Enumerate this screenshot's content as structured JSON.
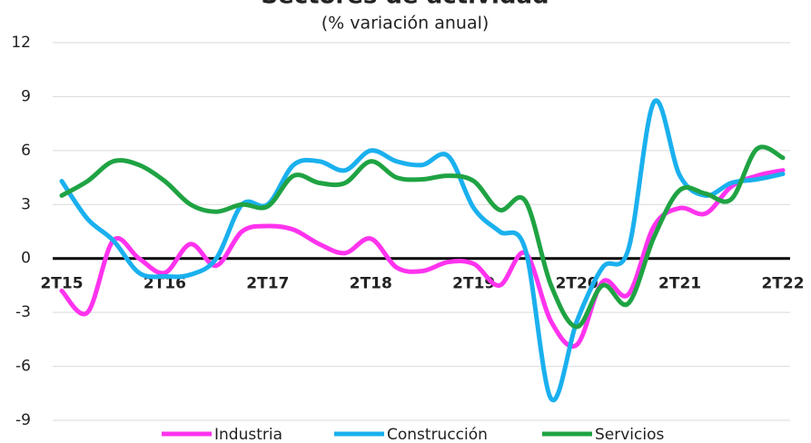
{
  "chart_data": {
    "type": "line",
    "title": "Sectores de actividad",
    "subtitle": "(% variación anual)",
    "categories": [
      "2T15",
      null,
      null,
      null,
      "2T16",
      null,
      null,
      null,
      "2T17",
      null,
      null,
      null,
      "2T18",
      null,
      null,
      null,
      "2T19",
      null,
      null,
      null,
      "2T20",
      null,
      null,
      null,
      "2T21",
      null,
      null,
      null,
      "2T22"
    ],
    "series": [
      {
        "name": "Industria",
        "color": "#ff33ee",
        "values": [
          -1.8,
          -3.0,
          1.0,
          0.0,
          -0.8,
          0.8,
          -0.4,
          1.5,
          1.8,
          1.6,
          0.8,
          0.3,
          1.1,
          -0.5,
          -0.7,
          -0.2,
          -0.3,
          -1.5,
          0.3,
          -3.5,
          -4.8,
          -1.3,
          -2.0,
          1.8,
          2.8,
          2.5,
          4.0,
          4.6,
          4.9
        ]
      },
      {
        "name": "Construcción",
        "color": "#1ab0ee",
        "values": [
          4.3,
          2.2,
          1.0,
          -0.8,
          -1.0,
          -0.9,
          0.0,
          3.0,
          3.0,
          5.2,
          5.4,
          4.9,
          6.0,
          5.4,
          5.2,
          5.7,
          2.8,
          1.5,
          0.5,
          -7.8,
          -3.5,
          -0.5,
          0.5,
          8.7,
          4.6,
          3.5,
          4.2,
          4.4,
          4.7
        ]
      },
      {
        "name": "Servicios",
        "color": "#1fa343",
        "values": [
          3.5,
          4.3,
          5.4,
          5.2,
          4.3,
          3.0,
          2.6,
          3.0,
          2.9,
          4.6,
          4.2,
          4.2,
          5.4,
          4.5,
          4.4,
          4.6,
          4.3,
          2.7,
          3.2,
          -1.5,
          -3.8,
          -1.5,
          -2.5,
          1.2,
          3.8,
          3.6,
          3.3,
          6.1,
          5.6
        ]
      }
    ],
    "ylim": [
      -9,
      12
    ],
    "yticks": [
      -9,
      -6,
      -3,
      0,
      3,
      6,
      9,
      12
    ],
    "grid": true
  }
}
